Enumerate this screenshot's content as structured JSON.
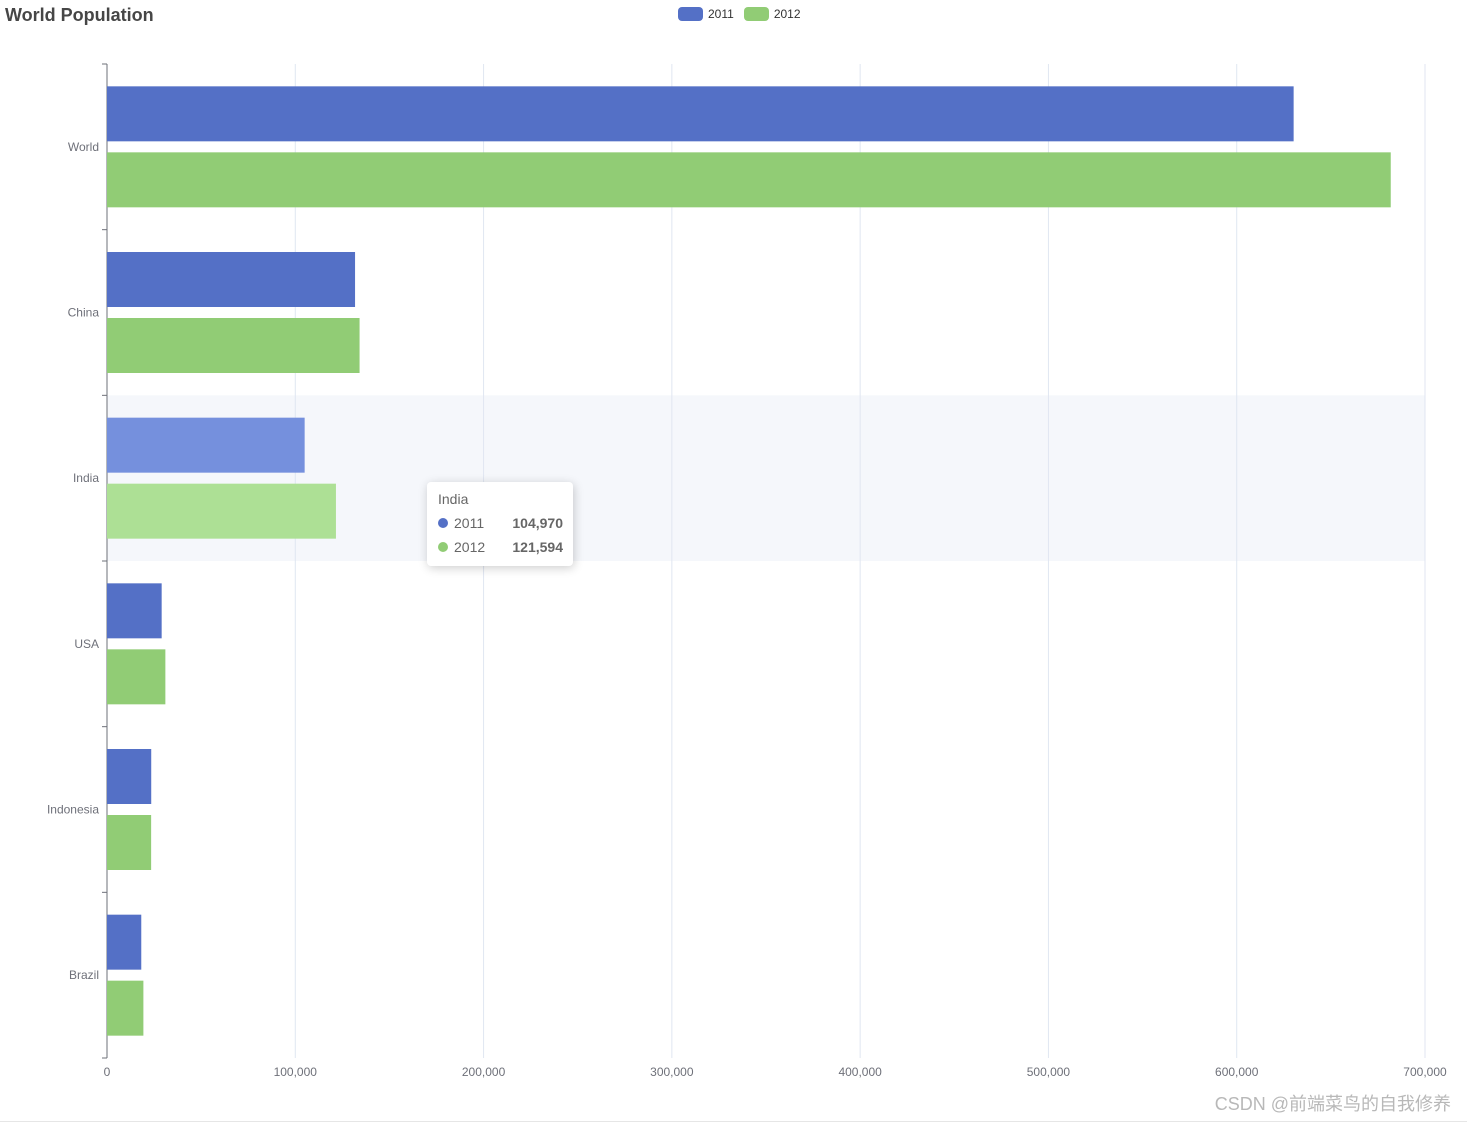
{
  "chart_data": {
    "type": "bar",
    "orientation": "horizontal",
    "title": "World Population",
    "categories": [
      "World",
      "China",
      "India",
      "USA",
      "Indonesia",
      "Brazil"
    ],
    "series": [
      {
        "name": "2011",
        "color": "#5470c6",
        "values": [
          630230,
          131744,
          104970,
          29034,
          23489,
          18203
        ]
      },
      {
        "name": "2012",
        "color": "#91cc75",
        "values": [
          681807,
          134141,
          121594,
          31000,
          23438,
          19325
        ]
      }
    ],
    "xlim": [
      0,
      700000
    ],
    "xticks": [
      "0",
      "100,000",
      "200,000",
      "300,000",
      "400,000",
      "500,000",
      "600,000",
      "700,000"
    ],
    "grid": true,
    "legend_position": "top-center",
    "highlighted_category": "India"
  },
  "tooltip": {
    "title": "India",
    "rows": [
      {
        "name": "2011",
        "value": "104,970",
        "color": "#5470c6"
      },
      {
        "name": "2012",
        "value": "121,594",
        "color": "#91cc75"
      }
    ]
  },
  "watermark": "CSDN @前端菜鸟的自我修养"
}
